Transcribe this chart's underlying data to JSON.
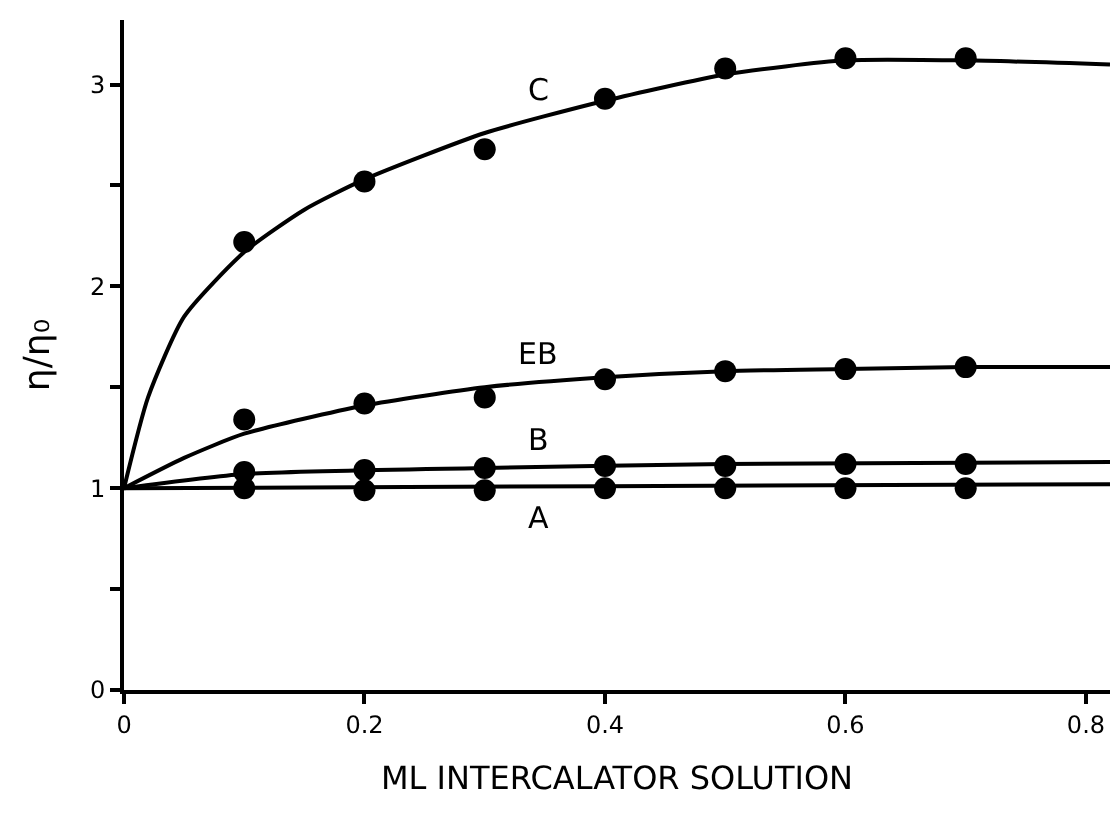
{
  "chart_data": {
    "type": "scatter",
    "xlabel": "ML INTERCALATOR SOLUTION",
    "ylabel": "η/η₀",
    "xlim": [
      0,
      0.82
    ],
    "ylim": [
      0,
      3.32
    ],
    "xticks": [
      0,
      0.2,
      0.4,
      0.6,
      0.8
    ],
    "yticks": [
      0,
      {
        "value": 0.5,
        "label": null
      },
      1,
      {
        "value": 1.5,
        "label": null
      },
      2,
      {
        "value": 2.5,
        "label": null
      },
      3
    ],
    "legend": false,
    "series": [
      {
        "marker": "circle",
        "color": "#000000",
        "x": [
          0.1,
          0.2,
          0.3,
          0.4,
          0.5,
          0.6,
          0.7
        ],
        "values": [
          2.22,
          2.52,
          2.68,
          2.93,
          3.08,
          3.13,
          3.13
        ]
      },
      {
        "marker": "circle",
        "color": "#000000",
        "x": [
          0.1,
          0.2,
          0.3,
          0.4,
          0.5,
          0.6,
          0.7
        ],
        "values": [
          1.34,
          1.42,
          1.45,
          1.54,
          1.58,
          1.59,
          1.6
        ]
      },
      {
        "marker": "circle",
        "color": "#000000",
        "x": [
          0.1,
          0.2,
          0.3,
          0.4,
          0.5,
          0.6,
          0.7
        ],
        "values": [
          1.08,
          1.09,
          1.1,
          1.11,
          1.11,
          1.12,
          1.12
        ]
      },
      {
        "marker": "circle",
        "color": "#000000",
        "x": [
          0.1,
          0.2,
          0.3,
          0.4,
          0.5,
          0.6,
          0.7
        ],
        "values": [
          1.0,
          0.99,
          0.99,
          1.0,
          1.0,
          1.0,
          1.0
        ]
      },
      {
        "type": "line",
        "name": "C",
        "marker": "none",
        "line_style": "solid",
        "color": "#000000",
        "x": [
          0,
          0.02,
          0.05,
          0.1,
          0.15,
          0.2,
          0.3,
          0.4,
          0.5,
          0.6,
          0.7,
          0.82
        ],
        "values": [
          1,
          1.45,
          1.85,
          2.17,
          2.38,
          2.53,
          2.76,
          2.92,
          3.05,
          3.12,
          3.12,
          3.1
        ]
      },
      {
        "type": "line",
        "name": "EB",
        "marker": "none",
        "line_style": "solid",
        "color": "#000000",
        "x": [
          0,
          0.05,
          0.1,
          0.2,
          0.3,
          0.4,
          0.5,
          0.6,
          0.7,
          0.82
        ],
        "values": [
          1,
          1.15,
          1.27,
          1.41,
          1.5,
          1.55,
          1.58,
          1.59,
          1.6,
          1.6
        ]
      },
      {
        "type": "line",
        "name": "B",
        "marker": "none",
        "line_style": "solid",
        "color": "#000000",
        "x": [
          0,
          0.1,
          0.3,
          0.5,
          0.82
        ],
        "values": [
          1,
          1.07,
          1.1,
          1.12,
          1.13
        ]
      },
      {
        "type": "line",
        "name": "A",
        "marker": "none",
        "line_style": "solid",
        "color": "#000000",
        "x": [
          0,
          0.4,
          0.82
        ],
        "values": [
          1,
          1.01,
          1.02
        ]
      }
    ]
  }
}
